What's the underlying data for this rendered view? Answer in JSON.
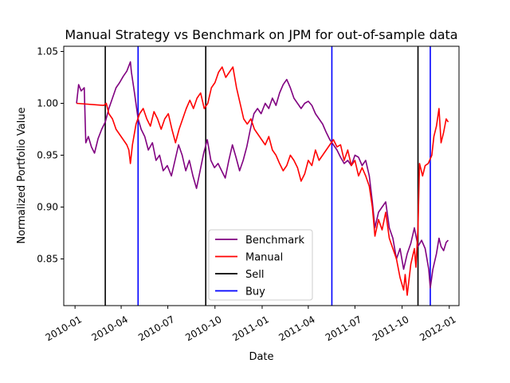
{
  "chart_data": {
    "type": "line",
    "title": "Manual Strategy vs Benchmark on JPM for out-of-sample data",
    "xlabel": "Date",
    "ylabel": "Normalized Portfolio Value",
    "x_range": [
      "2009-12-10",
      "2012-01-20"
    ],
    "ylim": [
      0.805,
      1.055
    ],
    "x_ticks": [
      "2010-01",
      "2010-04",
      "2010-07",
      "2010-10",
      "2011-01",
      "2011-04",
      "2011-07",
      "2011-10",
      "2012-01"
    ],
    "y_ticks": [
      0.85,
      0.9,
      0.95,
      1.0,
      1.05
    ],
    "y_tick_labels": [
      "0.85",
      "0.90",
      "0.95",
      "1.00",
      "1.05"
    ],
    "legend_position": "lower-center",
    "series": [
      {
        "name": "Benchmark",
        "color": "#800080",
        "points": [
          [
            "2010-01-04",
            1.0
          ],
          [
            "2010-01-08",
            1.018
          ],
          [
            "2010-01-13",
            1.012
          ],
          [
            "2010-01-19",
            1.015
          ],
          [
            "2010-01-22",
            0.962
          ],
          [
            "2010-01-27",
            0.968
          ],
          [
            "2010-02-02",
            0.958
          ],
          [
            "2010-02-08",
            0.952
          ],
          [
            "2010-02-15",
            0.966
          ],
          [
            "2010-02-22",
            0.975
          ],
          [
            "2010-03-01",
            0.982
          ],
          [
            "2010-03-08",
            0.995
          ],
          [
            "2010-03-15",
            1.005
          ],
          [
            "2010-03-22",
            1.015
          ],
          [
            "2010-03-29",
            1.02
          ],
          [
            "2010-04-05",
            1.026
          ],
          [
            "2010-04-12",
            1.031
          ],
          [
            "2010-04-19",
            1.04
          ],
          [
            "2010-04-21",
            1.03
          ],
          [
            "2010-04-27",
            1.01
          ],
          [
            "2010-05-04",
            0.985
          ],
          [
            "2010-05-10",
            0.975
          ],
          [
            "2010-05-17",
            0.968
          ],
          [
            "2010-05-24",
            0.955
          ],
          [
            "2010-06-01",
            0.962
          ],
          [
            "2010-06-08",
            0.945
          ],
          [
            "2010-06-15",
            0.95
          ],
          [
            "2010-06-22",
            0.935
          ],
          [
            "2010-06-30",
            0.94
          ],
          [
            "2010-07-08",
            0.93
          ],
          [
            "2010-07-15",
            0.945
          ],
          [
            "2010-07-22",
            0.96
          ],
          [
            "2010-07-29",
            0.95
          ],
          [
            "2010-08-05",
            0.935
          ],
          [
            "2010-08-12",
            0.945
          ],
          [
            "2010-08-19",
            0.93
          ],
          [
            "2010-08-26",
            0.918
          ],
          [
            "2010-09-02",
            0.935
          ],
          [
            "2010-09-09",
            0.952
          ],
          [
            "2010-09-16",
            0.965
          ],
          [
            "2010-09-23",
            0.945
          ],
          [
            "2010-09-30",
            0.938
          ],
          [
            "2010-10-07",
            0.942
          ],
          [
            "2010-10-14",
            0.935
          ],
          [
            "2010-10-21",
            0.928
          ],
          [
            "2010-10-28",
            0.945
          ],
          [
            "2010-11-04",
            0.96
          ],
          [
            "2010-11-11",
            0.948
          ],
          [
            "2010-11-18",
            0.935
          ],
          [
            "2010-11-25",
            0.945
          ],
          [
            "2010-12-02",
            0.958
          ],
          [
            "2010-12-09",
            0.975
          ],
          [
            "2010-12-16",
            0.99
          ],
          [
            "2010-12-23",
            0.995
          ],
          [
            "2010-12-30",
            0.99
          ],
          [
            "2011-01-07",
            1.0
          ],
          [
            "2011-01-14",
            0.995
          ],
          [
            "2011-01-21",
            1.005
          ],
          [
            "2011-01-28",
            0.998
          ],
          [
            "2011-02-04",
            1.01
          ],
          [
            "2011-02-11",
            1.018
          ],
          [
            "2011-02-18",
            1.023
          ],
          [
            "2011-02-25",
            1.015
          ],
          [
            "2011-03-04",
            1.005
          ],
          [
            "2011-03-11",
            1.0
          ],
          [
            "2011-03-18",
            0.995
          ],
          [
            "2011-03-25",
            1.0
          ],
          [
            "2011-04-01",
            1.002
          ],
          [
            "2011-04-08",
            0.998
          ],
          [
            "2011-04-15",
            0.99
          ],
          [
            "2011-04-22",
            0.985
          ],
          [
            "2011-04-29",
            0.98
          ],
          [
            "2011-05-06",
            0.972
          ],
          [
            "2011-05-13",
            0.965
          ],
          [
            "2011-05-20",
            0.96
          ],
          [
            "2011-05-27",
            0.955
          ],
          [
            "2011-06-03",
            0.948
          ],
          [
            "2011-06-10",
            0.942
          ],
          [
            "2011-06-17",
            0.945
          ],
          [
            "2011-06-24",
            0.94
          ],
          [
            "2011-07-01",
            0.95
          ],
          [
            "2011-07-08",
            0.948
          ],
          [
            "2011-07-15",
            0.94
          ],
          [
            "2011-07-22",
            0.945
          ],
          [
            "2011-07-29",
            0.93
          ],
          [
            "2011-08-04",
            0.905
          ],
          [
            "2011-08-09",
            0.88
          ],
          [
            "2011-08-16",
            0.895
          ],
          [
            "2011-08-23",
            0.9
          ],
          [
            "2011-08-30",
            0.905
          ],
          [
            "2011-09-06",
            0.88
          ],
          [
            "2011-09-13",
            0.87
          ],
          [
            "2011-09-20",
            0.85
          ],
          [
            "2011-09-27",
            0.86
          ],
          [
            "2011-10-04",
            0.84
          ],
          [
            "2011-10-11",
            0.855
          ],
          [
            "2011-10-18",
            0.865
          ],
          [
            "2011-10-25",
            0.88
          ],
          [
            "2011-11-01",
            0.862
          ],
          [
            "2011-11-08",
            0.868
          ],
          [
            "2011-11-15",
            0.86
          ],
          [
            "2011-11-22",
            0.84
          ],
          [
            "2011-11-25",
            0.822
          ],
          [
            "2011-11-30",
            0.84
          ],
          [
            "2011-12-07",
            0.855
          ],
          [
            "2011-12-12",
            0.87
          ],
          [
            "2011-12-16",
            0.862
          ],
          [
            "2011-12-21",
            0.858
          ],
          [
            "2011-12-26",
            0.866
          ],
          [
            "2011-12-30",
            0.868
          ]
        ]
      },
      {
        "name": "Manual",
        "color": "#ff0000",
        "points": [
          [
            "2010-01-04",
            1.0
          ],
          [
            "2010-02-26",
            0.998
          ],
          [
            "2010-03-03",
            1.0
          ],
          [
            "2010-03-08",
            0.99
          ],
          [
            "2010-03-15",
            0.985
          ],
          [
            "2010-03-22",
            0.975
          ],
          [
            "2010-03-29",
            0.97
          ],
          [
            "2010-04-05",
            0.965
          ],
          [
            "2010-04-12",
            0.96
          ],
          [
            "2010-04-16",
            0.955
          ],
          [
            "2010-04-19",
            0.942
          ],
          [
            "2010-04-23",
            0.96
          ],
          [
            "2010-04-30",
            0.98
          ],
          [
            "2010-05-07",
            0.99
          ],
          [
            "2010-05-14",
            0.995
          ],
          [
            "2010-05-21",
            0.985
          ],
          [
            "2010-05-28",
            0.978
          ],
          [
            "2010-06-04",
            0.992
          ],
          [
            "2010-06-11",
            0.985
          ],
          [
            "2010-06-18",
            0.975
          ],
          [
            "2010-06-25",
            0.985
          ],
          [
            "2010-07-02",
            0.99
          ],
          [
            "2010-07-09",
            0.975
          ],
          [
            "2010-07-16",
            0.962
          ],
          [
            "2010-07-23",
            0.975
          ],
          [
            "2010-07-30",
            0.985
          ],
          [
            "2010-08-06",
            0.995
          ],
          [
            "2010-08-13",
            1.003
          ],
          [
            "2010-08-20",
            0.995
          ],
          [
            "2010-08-27",
            1.005
          ],
          [
            "2010-09-03",
            1.01
          ],
          [
            "2010-09-10",
            0.995
          ],
          [
            "2010-09-17",
            1.0
          ],
          [
            "2010-09-24",
            1.015
          ],
          [
            "2010-10-01",
            1.02
          ],
          [
            "2010-10-08",
            1.03
          ],
          [
            "2010-10-15",
            1.035
          ],
          [
            "2010-10-22",
            1.025
          ],
          [
            "2010-10-29",
            1.03
          ],
          [
            "2010-11-05",
            1.035
          ],
          [
            "2010-11-12",
            1.015
          ],
          [
            "2010-11-19",
            1.0
          ],
          [
            "2010-11-26",
            0.985
          ],
          [
            "2010-12-03",
            0.98
          ],
          [
            "2010-12-10",
            0.985
          ],
          [
            "2010-12-17",
            0.975
          ],
          [
            "2010-12-24",
            0.97
          ],
          [
            "2010-12-31",
            0.965
          ],
          [
            "2011-01-07",
            0.96
          ],
          [
            "2011-01-14",
            0.968
          ],
          [
            "2011-01-21",
            0.955
          ],
          [
            "2011-01-28",
            0.95
          ],
          [
            "2011-02-04",
            0.942
          ],
          [
            "2011-02-11",
            0.935
          ],
          [
            "2011-02-18",
            0.94
          ],
          [
            "2011-02-25",
            0.95
          ],
          [
            "2011-03-04",
            0.945
          ],
          [
            "2011-03-11",
            0.938
          ],
          [
            "2011-03-18",
            0.925
          ],
          [
            "2011-03-25",
            0.932
          ],
          [
            "2011-04-01",
            0.945
          ],
          [
            "2011-04-08",
            0.94
          ],
          [
            "2011-04-15",
            0.955
          ],
          [
            "2011-04-22",
            0.945
          ],
          [
            "2011-04-29",
            0.95
          ],
          [
            "2011-05-06",
            0.955
          ],
          [
            "2011-05-13",
            0.96
          ],
          [
            "2011-05-20",
            0.965
          ],
          [
            "2011-05-27",
            0.958
          ],
          [
            "2011-06-03",
            0.96
          ],
          [
            "2011-06-10",
            0.945
          ],
          [
            "2011-06-17",
            0.955
          ],
          [
            "2011-06-24",
            0.94
          ],
          [
            "2011-07-01",
            0.945
          ],
          [
            "2011-07-08",
            0.93
          ],
          [
            "2011-07-15",
            0.938
          ],
          [
            "2011-07-22",
            0.93
          ],
          [
            "2011-07-29",
            0.92
          ],
          [
            "2011-08-04",
            0.9
          ],
          [
            "2011-08-09",
            0.872
          ],
          [
            "2011-08-16",
            0.888
          ],
          [
            "2011-08-23",
            0.878
          ],
          [
            "2011-08-30",
            0.895
          ],
          [
            "2011-09-06",
            0.87
          ],
          [
            "2011-09-13",
            0.86
          ],
          [
            "2011-09-20",
            0.85
          ],
          [
            "2011-09-27",
            0.832
          ],
          [
            "2011-10-04",
            0.82
          ],
          [
            "2011-10-07",
            0.835
          ],
          [
            "2011-10-11",
            0.815
          ],
          [
            "2011-10-18",
            0.845
          ],
          [
            "2011-10-25",
            0.86
          ],
          [
            "2011-10-28",
            0.842
          ],
          [
            "2011-11-01",
            0.88
          ],
          [
            "2011-11-04",
            0.942
          ],
          [
            "2011-11-10",
            0.93
          ],
          [
            "2011-11-15",
            0.94
          ],
          [
            "2011-11-21",
            0.942
          ],
          [
            "2011-11-28",
            0.95
          ],
          [
            "2011-12-02",
            0.968
          ],
          [
            "2011-12-07",
            0.978
          ],
          [
            "2011-12-12",
            0.995
          ],
          [
            "2011-12-16",
            0.962
          ],
          [
            "2011-12-21",
            0.972
          ],
          [
            "2011-12-26",
            0.985
          ],
          [
            "2011-12-30",
            0.982
          ]
        ]
      }
    ],
    "vlines": [
      {
        "name": "Sell",
        "color": "#000000",
        "dates": [
          "2010-03-01",
          "2010-09-13",
          "2011-11-01"
        ]
      },
      {
        "name": "Buy",
        "color": "#0000ff",
        "dates": [
          "2010-05-04",
          "2011-05-17",
          "2011-11-25"
        ]
      }
    ],
    "legend": [
      "Benchmark",
      "Manual",
      "Sell",
      "Buy"
    ]
  }
}
